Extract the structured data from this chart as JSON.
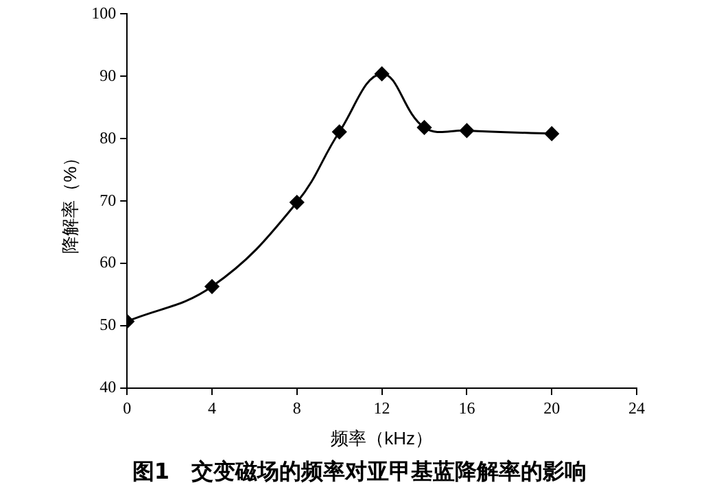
{
  "chart_data": {
    "type": "line",
    "xlabel": "频率（kHz）",
    "ylabel": "降解率（%）",
    "x": [
      0,
      4,
      8,
      10,
      12,
      14,
      16,
      20
    ],
    "series": [
      {
        "color": "#000000",
        "values": [
          50.7,
          56.3,
          69.8,
          81.1,
          90.4,
          81.8,
          81.3,
          80.8
        ]
      }
    ],
    "xlim": [
      0,
      24
    ],
    "xticks": [
      0,
      4,
      8,
      12,
      16,
      20,
      24
    ],
    "ylim": [
      40,
      100
    ],
    "yticks": [
      40,
      50,
      60,
      70,
      80,
      90,
      100
    ],
    "grid": false,
    "legend": false,
    "marker": "diamond",
    "line_style": "solid",
    "annotations": [
      "图1　交变磁场的频率对亚甲基蓝降解率的影响"
    ]
  }
}
